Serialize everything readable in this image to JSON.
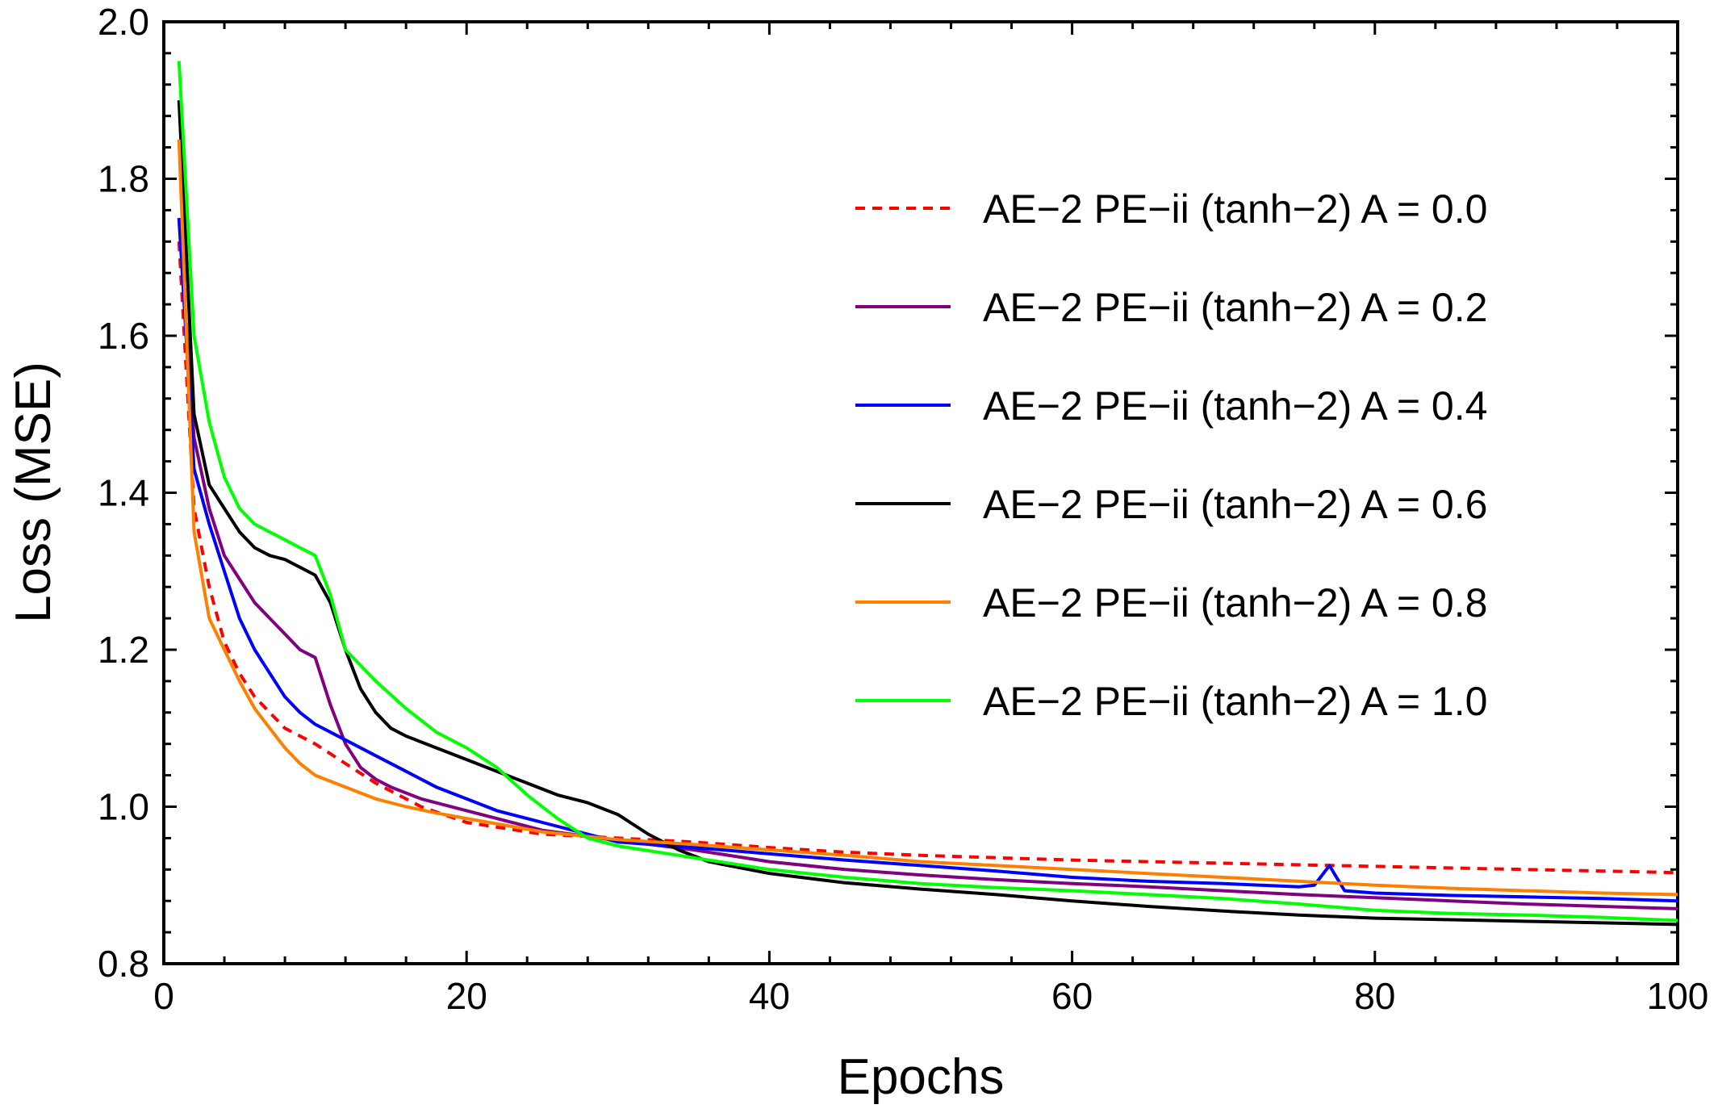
{
  "chart_data": {
    "type": "line",
    "title": "",
    "xlabel": "Epochs",
    "ylabel": "Loss (MSE)",
    "xlim": [
      0,
      100
    ],
    "ylim": [
      0.8,
      2.0
    ],
    "xticks": [
      "0",
      "20",
      "40",
      "60",
      "80",
      "100"
    ],
    "yticks": [
      "0.8",
      "1.0",
      "1.2",
      "1.4",
      "1.6",
      "1.8",
      "2.0"
    ],
    "grid": false,
    "legend_position": "right",
    "series": [
      {
        "name": "AE−2 PE−ii (tanh−2) A = 0.0",
        "color": "#ff0000",
        "dashed": true,
        "x": [
          1,
          2,
          3,
          4,
          5,
          6,
          7,
          8,
          10,
          12,
          14,
          17,
          20,
          25,
          30,
          35,
          40,
          45,
          50,
          55,
          60,
          65,
          70,
          75,
          80,
          85,
          90,
          95,
          100
        ],
        "y": [
          1.72,
          1.38,
          1.28,
          1.21,
          1.17,
          1.14,
          1.12,
          1.1,
          1.08,
          1.055,
          1.03,
          1.0,
          0.98,
          0.965,
          0.96,
          0.955,
          0.948,
          0.942,
          0.938,
          0.935,
          0.932,
          0.93,
          0.928,
          0.926,
          0.924,
          0.922,
          0.92,
          0.918,
          0.916
        ]
      },
      {
        "name": "AE−2 PE−ii (tanh−2) A = 0.2",
        "color": "#800080",
        "dashed": false,
        "x": [
          1,
          2,
          3,
          4,
          5,
          6,
          7,
          8,
          9,
          10,
          11,
          12,
          13,
          14,
          15,
          17,
          20,
          25,
          30,
          35,
          40,
          45,
          50,
          55,
          60,
          65,
          70,
          75,
          80,
          85,
          90,
          95,
          100
        ],
        "y": [
          1.75,
          1.47,
          1.38,
          1.32,
          1.29,
          1.26,
          1.24,
          1.22,
          1.2,
          1.19,
          1.13,
          1.08,
          1.05,
          1.035,
          1.025,
          1.01,
          0.995,
          0.97,
          0.957,
          0.945,
          0.93,
          0.92,
          0.913,
          0.907,
          0.902,
          0.898,
          0.893,
          0.888,
          0.884,
          0.88,
          0.876,
          0.873,
          0.87
        ]
      },
      {
        "name": "AE−2 PE−ii (tanh−2) A = 0.4",
        "color": "#0000ff",
        "dashed": false,
        "x": [
          1,
          2,
          3,
          4,
          5,
          6,
          7,
          8,
          9,
          10,
          12,
          14,
          16,
          18,
          20,
          22,
          25,
          28,
          30,
          35,
          40,
          45,
          50,
          55,
          60,
          65,
          70,
          75,
          76,
          77,
          78,
          80,
          85,
          90,
          95,
          100
        ],
        "y": [
          1.75,
          1.43,
          1.36,
          1.3,
          1.24,
          1.2,
          1.17,
          1.14,
          1.12,
          1.105,
          1.085,
          1.065,
          1.045,
          1.025,
          1.01,
          0.995,
          0.98,
          0.965,
          0.955,
          0.948,
          0.94,
          0.932,
          0.925,
          0.918,
          0.91,
          0.905,
          0.902,
          0.898,
          0.9,
          0.925,
          0.893,
          0.89,
          0.887,
          0.885,
          0.883,
          0.88
        ]
      },
      {
        "name": "AE−2 PE−ii (tanh−2) A = 0.6",
        "color": "#000000",
        "dashed": false,
        "x": [
          1,
          2,
          3,
          4,
          5,
          6,
          7,
          8,
          9,
          10,
          11,
          12,
          13,
          14,
          15,
          16,
          18,
          20,
          22,
          24,
          26,
          28,
          30,
          32,
          34,
          36,
          40,
          45,
          50,
          55,
          60,
          65,
          70,
          75,
          80,
          85,
          90,
          95,
          100
        ],
        "y": [
          1.9,
          1.5,
          1.41,
          1.38,
          1.35,
          1.33,
          1.32,
          1.315,
          1.305,
          1.295,
          1.26,
          1.2,
          1.15,
          1.12,
          1.1,
          1.09,
          1.075,
          1.06,
          1.045,
          1.03,
          1.015,
          1.005,
          0.99,
          0.965,
          0.945,
          0.93,
          0.915,
          0.903,
          0.895,
          0.888,
          0.88,
          0.873,
          0.867,
          0.862,
          0.858,
          0.856,
          0.854,
          0.852,
          0.85
        ]
      },
      {
        "name": "AE−2 PE−ii (tanh−2) A = 0.8",
        "color": "#ff8000",
        "dashed": false,
        "x": [
          1,
          2,
          3,
          4,
          5,
          6,
          7,
          8,
          9,
          10,
          12,
          14,
          16,
          18,
          20,
          25,
          30,
          35,
          40,
          45,
          50,
          55,
          60,
          65,
          70,
          75,
          80,
          85,
          90,
          95,
          100
        ],
        "y": [
          1.85,
          1.35,
          1.24,
          1.2,
          1.16,
          1.125,
          1.1,
          1.075,
          1.055,
          1.04,
          1.025,
          1.01,
          1.0,
          0.992,
          0.985,
          0.968,
          0.958,
          0.952,
          0.945,
          0.938,
          0.93,
          0.925,
          0.92,
          0.915,
          0.91,
          0.905,
          0.9,
          0.896,
          0.893,
          0.89,
          0.888
        ]
      },
      {
        "name": "AE−2 PE−ii (tanh−2) A = 1.0",
        "color": "#00ff00",
        "dashed": false,
        "x": [
          1,
          2,
          3,
          4,
          5,
          6,
          7,
          8,
          9,
          10,
          11,
          12,
          14,
          16,
          18,
          20,
          22,
          24,
          26,
          28,
          30,
          35,
          40,
          45,
          50,
          55,
          60,
          65,
          70,
          75,
          80,
          85,
          90,
          95,
          100
        ],
        "y": [
          1.95,
          1.6,
          1.49,
          1.42,
          1.38,
          1.36,
          1.35,
          1.34,
          1.33,
          1.32,
          1.27,
          1.2,
          1.16,
          1.125,
          1.095,
          1.075,
          1.05,
          1.015,
          0.985,
          0.96,
          0.95,
          0.935,
          0.92,
          0.91,
          0.902,
          0.897,
          0.893,
          0.888,
          0.883,
          0.876,
          0.868,
          0.864,
          0.862,
          0.859,
          0.855
        ]
      }
    ]
  }
}
